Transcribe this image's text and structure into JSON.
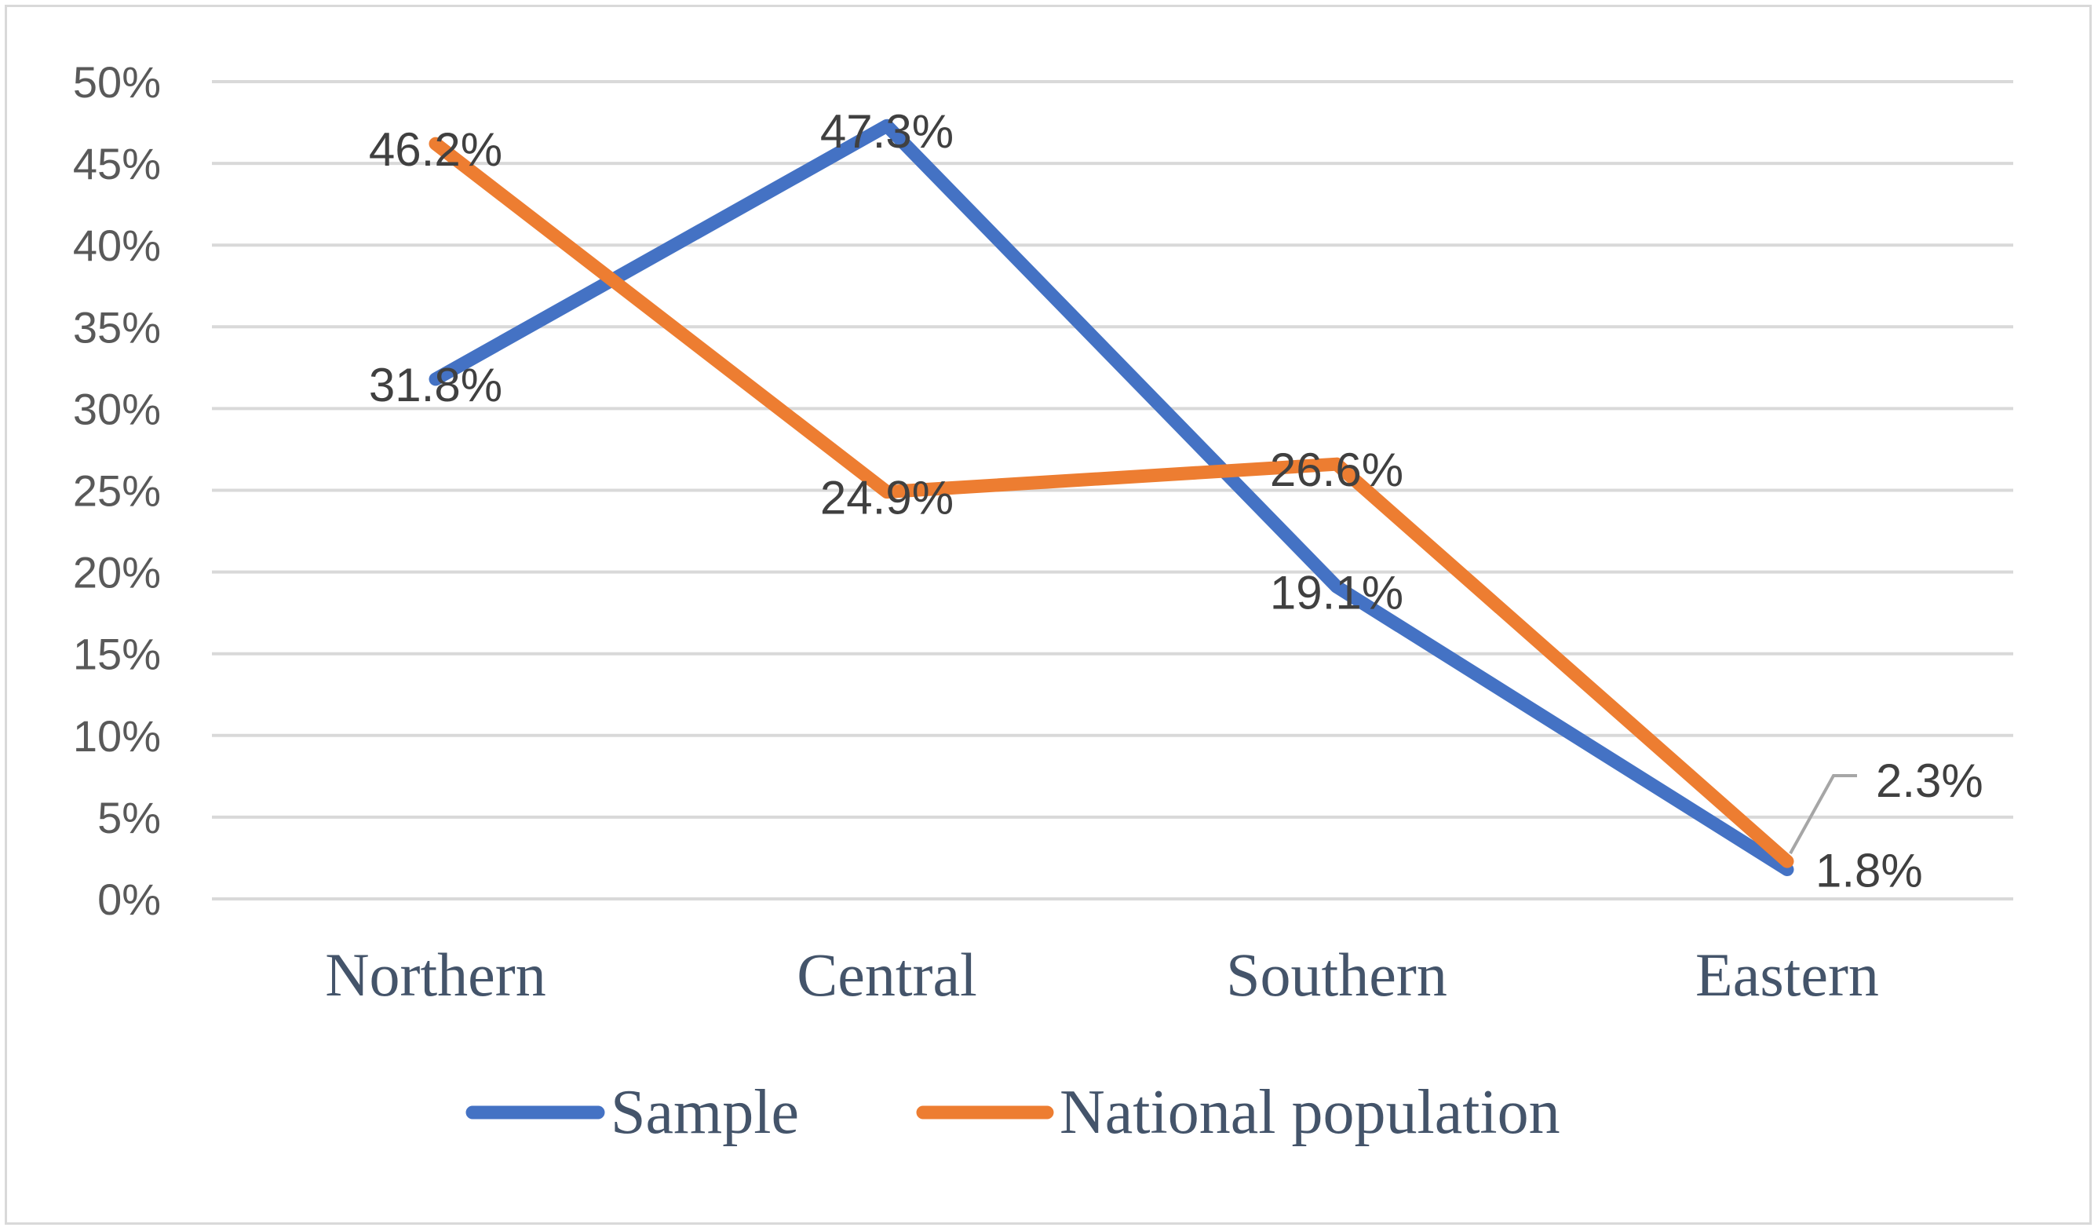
{
  "chart_data": {
    "type": "line",
    "title": "",
    "xlabel": "",
    "ylabel": "",
    "categories": [
      "Northern",
      "Central",
      "Southern",
      "Eastern"
    ],
    "ylim": [
      0,
      50
    ],
    "yticks": [
      0,
      5,
      10,
      15,
      20,
      25,
      30,
      35,
      40,
      45,
      50
    ],
    "ytick_labels": [
      "0%",
      "5%",
      "10%",
      "15%",
      "20%",
      "25%",
      "30%",
      "35%",
      "40%",
      "45%",
      "50%"
    ],
    "grid": true,
    "legend_position": "bottom",
    "series": [
      {
        "name": "Sample",
        "color": "#4472c4",
        "values": [
          31.8,
          47.3,
          19.1,
          1.8
        ],
        "labels": [
          "31.8%",
          "47.3%",
          "19.1%",
          "1.8%"
        ]
      },
      {
        "name": "National population",
        "color": "#ed7d31",
        "values": [
          46.2,
          24.9,
          26.6,
          2.3
        ],
        "labels": [
          "46.2%",
          "24.9%",
          "26.6%",
          "2.3%"
        ]
      }
    ]
  }
}
